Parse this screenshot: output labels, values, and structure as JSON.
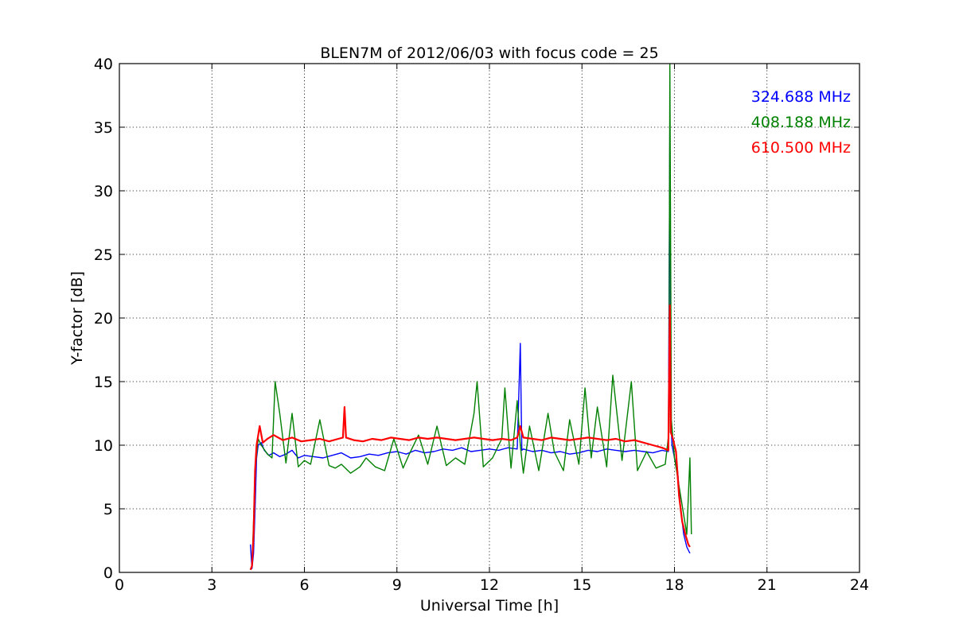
{
  "chart_data": {
    "type": "line",
    "title": "BLEN7M of 2012/06/03 with focus code = 25",
    "xlabel": "Universal Time [h]",
    "ylabel": "Y-factor [dB]",
    "xlim": [
      0,
      24
    ],
    "ylim": [
      0,
      40
    ],
    "xticks": [
      0,
      3,
      6,
      9,
      12,
      15,
      18,
      21,
      24
    ],
    "xtick_labels": [
      "0",
      "3",
      "6",
      "9",
      "12",
      "15",
      "18",
      "21",
      "24"
    ],
    "yticks": [
      0,
      5,
      10,
      15,
      20,
      25,
      30,
      35,
      40
    ],
    "ytick_labels": [
      "0",
      "5",
      "10",
      "15",
      "20",
      "25",
      "30",
      "35",
      "40"
    ],
    "grid": true,
    "legend_position": "top-right",
    "series": [
      {
        "name": "324.688 MHz",
        "color": "#0000ff",
        "x": [
          4.25,
          4.3,
          4.35,
          4.4,
          4.45,
          4.5,
          4.6,
          4.7,
          4.85,
          5.0,
          5.2,
          5.4,
          5.6,
          5.8,
          6.0,
          6.3,
          6.6,
          6.9,
          7.2,
          7.5,
          7.8,
          8.1,
          8.4,
          8.7,
          9.0,
          9.3,
          9.6,
          9.9,
          10.2,
          10.5,
          10.8,
          11.1,
          11.4,
          11.7,
          12.0,
          12.3,
          12.6,
          12.9,
          13.0,
          13.05,
          13.1,
          13.4,
          13.7,
          14.0,
          14.3,
          14.6,
          14.9,
          15.2,
          15.5,
          15.8,
          16.1,
          16.4,
          16.7,
          17.0,
          17.3,
          17.6,
          17.8,
          17.85,
          17.88,
          17.92,
          18.0,
          18.1,
          18.2,
          18.3,
          18.4,
          18.5
        ],
        "y": [
          2.2,
          0.3,
          1.5,
          5.0,
          9.0,
          10.0,
          10.2,
          9.6,
          9.2,
          9.4,
          9.1,
          9.3,
          9.6,
          9.0,
          9.2,
          9.1,
          9.0,
          9.2,
          9.4,
          9.0,
          9.1,
          9.3,
          9.2,
          9.4,
          9.5,
          9.3,
          9.6,
          9.4,
          9.5,
          9.7,
          9.6,
          9.8,
          9.5,
          9.6,
          9.7,
          9.6,
          9.8,
          9.7,
          18.0,
          9.6,
          9.7,
          9.5,
          9.6,
          9.4,
          9.5,
          9.3,
          9.4,
          9.6,
          9.5,
          9.7,
          9.6,
          9.5,
          9.6,
          9.5,
          9.4,
          9.6,
          9.5,
          35.0,
          12.0,
          10.0,
          9.0,
          8.0,
          5.0,
          3.0,
          2.0,
          1.5
        ]
      },
      {
        "name": "408.188 MHz",
        "color": "#008000",
        "x": [
          4.3,
          4.35,
          4.4,
          4.5,
          4.6,
          4.8,
          4.95,
          5.05,
          5.2,
          5.4,
          5.6,
          5.8,
          6.0,
          6.2,
          6.5,
          6.8,
          7.0,
          7.2,
          7.5,
          7.8,
          8.0,
          8.3,
          8.6,
          8.9,
          9.2,
          9.4,
          9.7,
          10.0,
          10.3,
          10.6,
          10.9,
          11.2,
          11.5,
          11.6,
          11.8,
          12.1,
          12.4,
          12.5,
          12.7,
          12.9,
          13.0,
          13.1,
          13.3,
          13.6,
          13.9,
          14.1,
          14.4,
          14.6,
          14.9,
          15.1,
          15.3,
          15.5,
          15.8,
          16.0,
          16.3,
          16.6,
          16.8,
          17.1,
          17.4,
          17.7,
          17.82,
          17.85,
          17.9,
          18.0,
          18.2,
          18.4,
          18.5,
          18.55
        ],
        "y": [
          0.5,
          4.0,
          8.0,
          10.5,
          10.0,
          9.3,
          9.0,
          15.0,
          12.5,
          8.6,
          12.5,
          8.3,
          8.8,
          8.5,
          12.0,
          8.4,
          8.2,
          8.5,
          7.8,
          8.3,
          9.0,
          8.3,
          8.0,
          10.5,
          8.2,
          9.3,
          10.8,
          8.5,
          11.5,
          8.4,
          9.0,
          8.5,
          12.5,
          15.0,
          8.3,
          9.0,
          10.5,
          14.5,
          8.2,
          13.5,
          10.0,
          7.8,
          11.5,
          8.0,
          12.5,
          9.5,
          8.0,
          12.0,
          8.5,
          14.5,
          9.0,
          13.0,
          8.3,
          15.5,
          8.8,
          15.0,
          8.0,
          9.5,
          8.2,
          8.5,
          11.0,
          40.0,
          12.0,
          9.0,
          6.0,
          3.0,
          9.0,
          3.0
        ]
      },
      {
        "name": "610.500 MHz",
        "color": "#ff0000",
        "x": [
          4.25,
          4.3,
          4.35,
          4.4,
          4.45,
          4.55,
          4.65,
          4.8,
          5.0,
          5.3,
          5.6,
          5.9,
          6.2,
          6.5,
          6.8,
          7.1,
          7.25,
          7.3,
          7.35,
          7.6,
          7.9,
          8.2,
          8.5,
          8.8,
          9.1,
          9.4,
          9.7,
          10.0,
          10.3,
          10.6,
          10.9,
          11.2,
          11.5,
          11.8,
          12.1,
          12.4,
          12.7,
          12.9,
          13.0,
          13.1,
          13.4,
          13.7,
          14.0,
          14.3,
          14.6,
          14.9,
          15.2,
          15.5,
          15.8,
          16.1,
          16.4,
          16.7,
          17.0,
          17.3,
          17.6,
          17.8,
          17.85,
          17.88,
          17.95,
          18.05,
          18.15,
          18.25,
          18.35,
          18.45,
          18.5
        ],
        "y": [
          0.2,
          0.5,
          3.0,
          8.0,
          10.0,
          11.5,
          10.2,
          10.5,
          10.8,
          10.4,
          10.6,
          10.3,
          10.4,
          10.5,
          10.3,
          10.5,
          10.6,
          13.0,
          10.6,
          10.4,
          10.3,
          10.5,
          10.4,
          10.6,
          10.5,
          10.4,
          10.6,
          10.5,
          10.6,
          10.5,
          10.4,
          10.5,
          10.6,
          10.5,
          10.4,
          10.5,
          10.4,
          10.6,
          11.5,
          10.6,
          10.5,
          10.4,
          10.6,
          10.5,
          10.4,
          10.5,
          10.6,
          10.5,
          10.4,
          10.5,
          10.3,
          10.4,
          10.2,
          10.0,
          9.8,
          9.6,
          21.0,
          11.0,
          10.5,
          9.5,
          6.0,
          4.0,
          3.0,
          2.2,
          2.0
        ]
      }
    ]
  }
}
